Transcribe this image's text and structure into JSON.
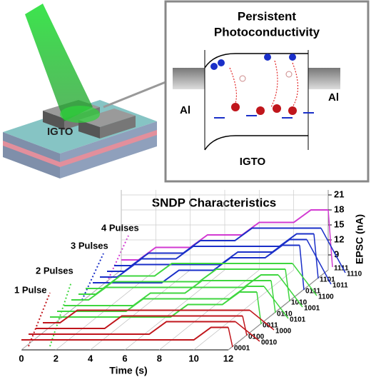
{
  "schematic": {
    "label": "IGTO"
  },
  "band_diagram": {
    "title_line1": "Persistent",
    "title_line2": "Photoconductivity",
    "left_contact": "Al",
    "right_contact": "Al",
    "channel": "IGTO"
  },
  "chart_data": {
    "type": "waterfall",
    "title": "SNDP Characteristics",
    "x_label": "Time (s)",
    "y_label": "EPSC (nA)",
    "annotations": [
      "1 Pulse",
      "2 Pulses",
      "3 Pulses",
      "4 Pulses"
    ],
    "x": [
      0,
      1,
      2,
      3,
      4,
      5,
      6,
      7,
      8,
      9,
      10,
      11,
      12
    ],
    "xlim": [
      0,
      12
    ],
    "xticks": [
      0,
      2,
      4,
      6,
      8,
      10,
      12
    ],
    "ylim": [
      6,
      22
    ],
    "yticks": [
      9,
      12,
      15,
      18,
      21
    ],
    "series": [
      {
        "name": "0001",
        "color": "#c0161c",
        "values": [
          8,
          8,
          8,
          8,
          8,
          8,
          8,
          8,
          8,
          8,
          8,
          10.5,
          10.5
        ]
      },
      {
        "name": "0010",
        "color": "#c0161c",
        "values": [
          8,
          8,
          8,
          8,
          8,
          8,
          8,
          8,
          10.5,
          10.5,
          10.5,
          10.5,
          10.5
        ]
      },
      {
        "name": "0100",
        "color": "#c0161c",
        "values": [
          8,
          8,
          8,
          8,
          8,
          10.5,
          10.5,
          10.5,
          10.5,
          10.5,
          10.5,
          10.5,
          10.5
        ]
      },
      {
        "name": "1000",
        "color": "#c0161c",
        "values": [
          8,
          8,
          10.5,
          10.5,
          10.5,
          10.5,
          10.5,
          10.5,
          10.5,
          10.5,
          10.5,
          10.5,
          10.5
        ]
      },
      {
        "name": "0011",
        "color": "#3fd63f",
        "values": [
          8,
          8,
          8,
          8,
          8,
          8,
          8,
          8,
          10.5,
          10.5,
          10.5,
          13,
          13
        ]
      },
      {
        "name": "0101",
        "color": "#3fd63f",
        "values": [
          8,
          8,
          8,
          8,
          8,
          10.5,
          10.5,
          10.5,
          10.5,
          10.5,
          10.5,
          13,
          13
        ]
      },
      {
        "name": "0110",
        "color": "#3fd63f",
        "values": [
          8,
          8,
          8,
          8,
          8,
          10.5,
          10.5,
          10.5,
          13,
          13,
          13,
          13,
          13
        ]
      },
      {
        "name": "1001",
        "color": "#3fd63f",
        "values": [
          8,
          8,
          10.5,
          10.5,
          10.5,
          10.5,
          10.5,
          10.5,
          10.5,
          10.5,
          10.5,
          13,
          13
        ]
      },
      {
        "name": "1010",
        "color": "#3fd63f",
        "values": [
          8,
          8,
          10.5,
          10.5,
          10.5,
          10.5,
          10.5,
          10.5,
          13,
          13,
          13,
          13,
          13
        ]
      },
      {
        "name": "1100",
        "color": "#3fd63f",
        "values": [
          8,
          8,
          10.5,
          10.5,
          10.5,
          13,
          13,
          13,
          13,
          13,
          13,
          13,
          13
        ]
      },
      {
        "name": "0111",
        "color": "#1a2fc8",
        "values": [
          8,
          8,
          8,
          8,
          8,
          10.5,
          10.5,
          10.5,
          13,
          13,
          13,
          15.5,
          15.5
        ]
      },
      {
        "name": "1011",
        "color": "#1a2fc8",
        "values": [
          8,
          8,
          10.5,
          10.5,
          10.5,
          10.5,
          10.5,
          10.5,
          13,
          13,
          13,
          15.5,
          15.5
        ]
      },
      {
        "name": "1101",
        "color": "#1a2fc8",
        "values": [
          8,
          8,
          10.5,
          10.5,
          10.5,
          13,
          13,
          13,
          13,
          13,
          13,
          15.5,
          15.5
        ]
      },
      {
        "name": "1110",
        "color": "#1a2fc8",
        "values": [
          8,
          8,
          10.5,
          10.5,
          10.5,
          13,
          13,
          13,
          15.5,
          15.5,
          15.5,
          15.5,
          15.5
        ]
      },
      {
        "name": "1111",
        "color": "#d23ad2",
        "values": [
          8,
          8,
          10.5,
          10.5,
          10.5,
          13,
          13,
          13,
          15.5,
          15.5,
          15.5,
          18,
          18
        ]
      }
    ]
  }
}
